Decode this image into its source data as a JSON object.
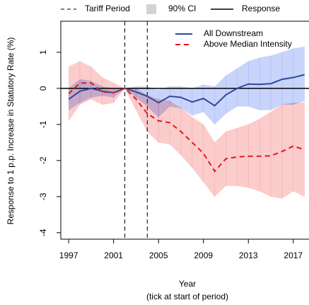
{
  "chart_data": {
    "type": "line",
    "y_label": "Response to 1 p.p. Increase in Statutory Rate (%)",
    "x_label": "Year",
    "x_sublabel": "(tick at start of period)",
    "top_legend": [
      "Tariff Period",
      "90% CI",
      "Response"
    ],
    "x": [
      1997,
      1998,
      1999,
      2000,
      2001,
      2002,
      2003,
      2004,
      2005,
      2006,
      2007,
      2008,
      2009,
      2010,
      2011,
      2012,
      2013,
      2014,
      2015,
      2016,
      2017,
      2018
    ],
    "series": [
      {
        "name": "All Downstream",
        "color": "#2e4a9a",
        "dash": false,
        "band_color": "#c9d4fb",
        "values": [
          -0.3,
          -0.08,
          0.0,
          -0.08,
          -0.12,
          0,
          -0.1,
          -0.22,
          -0.4,
          -0.22,
          -0.25,
          -0.38,
          -0.28,
          -0.48,
          -0.18,
          0.0,
          0.12,
          0.11,
          0.13,
          0.25,
          0.3,
          0.38
        ],
        "ci_upper": [
          0.0,
          0.25,
          0.2,
          0.05,
          0.0,
          0,
          0.05,
          0.05,
          -0.05,
          0.05,
          0.05,
          0.0,
          0.1,
          0.05,
          0.35,
          0.55,
          0.75,
          0.85,
          0.9,
          1.0,
          1.1,
          1.15
        ],
        "ci_lower": [
          -0.6,
          -0.4,
          -0.25,
          -0.2,
          -0.25,
          0,
          -0.25,
          -0.5,
          -0.8,
          -0.5,
          -0.55,
          -0.75,
          -0.65,
          -1.0,
          -0.7,
          -0.5,
          -0.5,
          -0.6,
          -0.6,
          -0.45,
          -0.45,
          -0.35
        ]
      },
      {
        "name": "Above Median Intensity",
        "color": "#e0191c",
        "dash": true,
        "band_color": "#fbcccc",
        "values": [
          -0.15,
          0.15,
          0.15,
          -0.1,
          -0.12,
          0,
          -0.3,
          -0.7,
          -0.9,
          -0.95,
          -1.2,
          -1.5,
          -1.8,
          -2.3,
          -1.95,
          -1.9,
          -1.88,
          -1.88,
          -1.87,
          -1.75,
          -1.6,
          -1.7
        ],
        "ci_upper": [
          0.6,
          0.75,
          0.6,
          0.3,
          0.15,
          0,
          0.0,
          -0.2,
          -0.3,
          -0.35,
          -0.55,
          -0.8,
          -1.0,
          -1.5,
          -1.2,
          -1.1,
          -1.0,
          -0.85,
          -0.65,
          -0.45,
          -0.4,
          -0.4
        ],
        "ci_lower": [
          -0.9,
          -0.45,
          -0.3,
          -0.45,
          -0.4,
          0,
          -0.6,
          -1.2,
          -1.5,
          -1.55,
          -1.85,
          -2.2,
          -2.6,
          -3.0,
          -2.7,
          -2.7,
          -2.75,
          -2.85,
          -3.0,
          -3.05,
          -2.85,
          -3.0
        ]
      }
    ],
    "tariff_period": [
      2002,
      2004
    ],
    "reference_line": 0,
    "xlim": [
      1996.3,
      2018.4
    ],
    "ylim": [
      -4.18,
      1.86
    ],
    "xticks": [
      1997,
      2001,
      2005,
      2009,
      2013,
      2017
    ],
    "yticks": [
      -4,
      -3,
      -2,
      -1,
      0,
      1
    ]
  }
}
